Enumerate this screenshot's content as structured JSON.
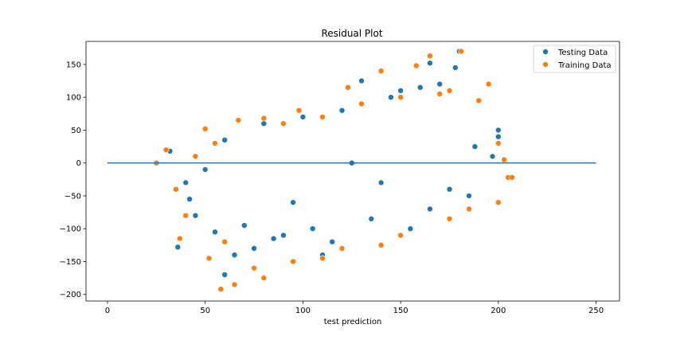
{
  "chart_data": {
    "type": "scatter",
    "title": "Residual Plot",
    "xlabel": "test prediction",
    "ylabel": "",
    "xlim": [
      -11,
      262
    ],
    "ylim": [
      -210,
      185
    ],
    "x_ticks": [
      0,
      50,
      100,
      150,
      200,
      250
    ],
    "y_ticks": [
      -200,
      -150,
      -100,
      -50,
      0,
      50,
      100,
      150
    ],
    "grid": false,
    "legend_position": "top-right",
    "hline": {
      "y": 0,
      "x_range": [
        0,
        250
      ],
      "color": "#1f77b4"
    },
    "series": [
      {
        "name": "Testing Data",
        "color": "#1f77b4",
        "points": [
          [
            180,
            170
          ],
          [
            178,
            145
          ],
          [
            165,
            152
          ],
          [
            160,
            115
          ],
          [
            150,
            110
          ],
          [
            130,
            125
          ],
          [
            40,
            -30
          ],
          [
            36,
            -128
          ],
          [
            45,
            -80
          ],
          [
            60,
            -170
          ],
          [
            110,
            -140
          ],
          [
            135,
            -85
          ],
          [
            175,
            -40
          ],
          [
            200,
            50
          ],
          [
            200,
            40
          ],
          [
            197,
            10
          ],
          [
            42,
            -55
          ],
          [
            55,
            -105
          ],
          [
            70,
            -95
          ],
          [
            90,
            -110
          ],
          [
            115,
            -120
          ],
          [
            155,
            -100
          ],
          [
            188,
            25
          ],
          [
            80,
            60
          ],
          [
            120,
            80
          ],
          [
            145,
            100
          ],
          [
            170,
            120
          ],
          [
            60,
            35
          ],
          [
            32,
            18
          ],
          [
            50,
            -10
          ],
          [
            100,
            70
          ],
          [
            95,
            -60
          ],
          [
            125,
            0
          ],
          [
            140,
            -30
          ],
          [
            165,
            -70
          ],
          [
            185,
            -50
          ],
          [
            75,
            -130
          ],
          [
            65,
            -140
          ],
          [
            85,
            -115
          ],
          [
            105,
            -100
          ]
        ]
      },
      {
        "name": "Training Data",
        "color": "#ff7f0e",
        "points": [
          [
            181,
            170
          ],
          [
            165,
            163
          ],
          [
            158,
            148
          ],
          [
            140,
            140
          ],
          [
            123,
            115
          ],
          [
            98,
            80
          ],
          [
            80,
            68
          ],
          [
            67,
            65
          ],
          [
            50,
            52
          ],
          [
            30,
            20
          ],
          [
            25,
            0
          ],
          [
            35,
            -40
          ],
          [
            40,
            -80
          ],
          [
            37,
            -115
          ],
          [
            52,
            -145
          ],
          [
            58,
            -192
          ],
          [
            65,
            -185
          ],
          [
            80,
            -175
          ],
          [
            110,
            -145
          ],
          [
            140,
            -125
          ],
          [
            175,
            -85
          ],
          [
            200,
            -60
          ],
          [
            205,
            -22
          ],
          [
            207,
            -22
          ],
          [
            203,
            5
          ],
          [
            200,
            30
          ],
          [
            195,
            120
          ],
          [
            190,
            95
          ],
          [
            175,
            110
          ],
          [
            60,
            -120
          ],
          [
            75,
            -160
          ],
          [
            95,
            -150
          ],
          [
            120,
            -130
          ],
          [
            150,
            -110
          ],
          [
            185,
            -70
          ],
          [
            45,
            10
          ],
          [
            55,
            30
          ],
          [
            90,
            60
          ],
          [
            110,
            70
          ],
          [
            130,
            90
          ],
          [
            150,
            100
          ],
          [
            170,
            105
          ]
        ]
      }
    ]
  }
}
